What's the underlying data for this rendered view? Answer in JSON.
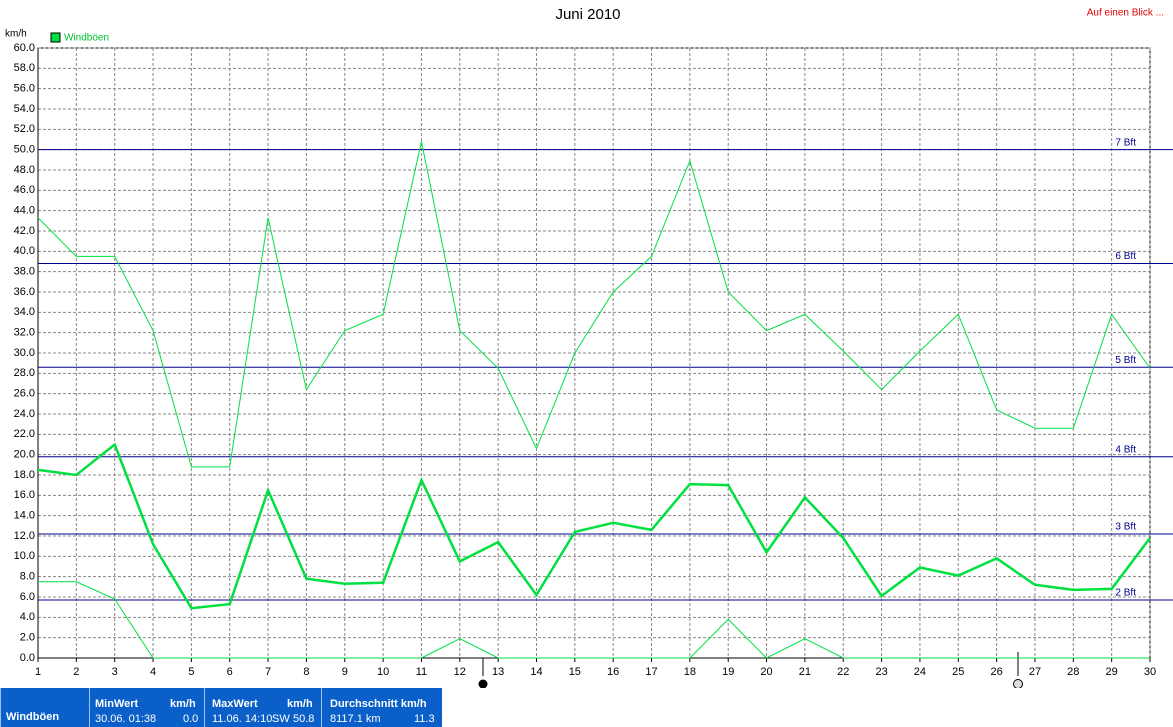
{
  "chart_data": {
    "type": "line",
    "title": "Juni 2010",
    "y_label": "km/h",
    "x": [
      1,
      2,
      3,
      4,
      5,
      6,
      7,
      8,
      9,
      10,
      11,
      12,
      13,
      14,
      15,
      16,
      17,
      18,
      19,
      20,
      21,
      22,
      23,
      24,
      25,
      26,
      27,
      28,
      29,
      30
    ],
    "series": [
      {
        "name": "Windböen",
        "color": "#00e040",
        "width": 2.5,
        "values": [
          18.5,
          18.0,
          21.0,
          11.2,
          4.9,
          5.3,
          16.5,
          7.8,
          7.3,
          7.4,
          17.5,
          9.5,
          11.4,
          6.2,
          12.4,
          13.3,
          12.6,
          17.1,
          17.0,
          10.4,
          15.8,
          11.8,
          6.1,
          8.9,
          8.1,
          9.8,
          7.2,
          6.7,
          6.8,
          11.8
        ]
      },
      {
        "color": "#00e040",
        "width": 1,
        "values": [
          43.3,
          39.5,
          39.5,
          32.2,
          18.8,
          18.8,
          43.3,
          26.4,
          32.2,
          33.8,
          50.8,
          32.2,
          28.5,
          20.6,
          30.0,
          36.0,
          39.5,
          48.9,
          36.0,
          32.2,
          33.8,
          30.2,
          26.4,
          30.2,
          33.8,
          24.4,
          22.6,
          22.6,
          33.8,
          28.5
        ]
      },
      {
        "color": "#00e040",
        "width": 1,
        "values": [
          7.5,
          7.5,
          5.8,
          0,
          0,
          0,
          0,
          0,
          0,
          0,
          0,
          1.9,
          0,
          0,
          0,
          0,
          0,
          0,
          3.8,
          0,
          1.9,
          0,
          0,
          0,
          0,
          0,
          0,
          0,
          0,
          0
        ]
      }
    ],
    "xlim": [
      1,
      30
    ],
    "xticks": [
      1,
      2,
      3,
      4,
      5,
      6,
      7,
      8,
      9,
      10,
      11,
      12,
      13,
      14,
      15,
      16,
      17,
      18,
      19,
      20,
      21,
      22,
      23,
      24,
      25,
      26,
      27,
      28,
      29,
      30
    ],
    "ylim": [
      0,
      60
    ],
    "yticks": [
      {
        "value": 0,
        "label": "0.0"
      },
      {
        "value": 2,
        "label": "2.0"
      },
      {
        "value": 4,
        "label": "4.0"
      },
      {
        "value": 6,
        "label": "6.0"
      },
      {
        "value": 8,
        "label": "8.0"
      },
      {
        "value": 10,
        "label": "10.0"
      },
      {
        "value": 12,
        "label": "12.0"
      },
      {
        "value": 14,
        "label": "14.0"
      },
      {
        "value": 16,
        "label": "16.0"
      },
      {
        "value": 18,
        "label": "18.0"
      },
      {
        "value": 20,
        "label": "20.0"
      },
      {
        "value": 22,
        "label": "22.0"
      },
      {
        "value": 24,
        "label": "24.0"
      },
      {
        "value": 26,
        "label": "26.0"
      },
      {
        "value": 28,
        "label": "28.0"
      },
      {
        "value": 30,
        "label": "30.0"
      },
      {
        "value": 32,
        "label": "32.0"
      },
      {
        "value": 34,
        "label": "34.0"
      },
      {
        "value": 36,
        "label": "36.0"
      },
      {
        "value": 38,
        "label": "38.0"
      },
      {
        "value": 40,
        "label": "40.0"
      },
      {
        "value": 42,
        "label": "42.0"
      },
      {
        "value": 44,
        "label": "44.0"
      },
      {
        "value": 46,
        "label": "46.0"
      },
      {
        "value": 48,
        "label": "48.0"
      },
      {
        "value": 50,
        "label": "50.0"
      },
      {
        "value": 52,
        "label": "52.0"
      },
      {
        "value": 54,
        "label": "54.0"
      },
      {
        "value": 56,
        "label": "56.0"
      },
      {
        "value": 58,
        "label": "58.0"
      },
      {
        "value": 60,
        "label": "60.0"
      }
    ],
    "grid": true,
    "reference_color": "#00008b",
    "reference_lines": [
      {
        "value": 5.7,
        "label": "2 Bft"
      },
      {
        "value": 12.2,
        "label": "3 Bft"
      },
      {
        "value": 19.8,
        "label": "4 Bft"
      },
      {
        "value": 28.6,
        "label": "5 Bft"
      },
      {
        "value": 38.8,
        "label": "6 Bft"
      },
      {
        "value": 50.0,
        "label": "7 Bft"
      }
    ]
  },
  "link": "Auf einen Blick ...",
  "summary": {
    "row_label": "Windböen",
    "min": {
      "header": "MinWert",
      "unit": "km/h",
      "time": "30.06. 01:38",
      "value": "0.0"
    },
    "max": {
      "header": "MaxWert",
      "unit": "km/h",
      "time": "11.06. 14:10",
      "direction": "SW",
      "value": "50.8"
    },
    "avg": {
      "header": "Durchschnitt km/h",
      "distance": "8117.1 km",
      "value": "11.3"
    }
  }
}
